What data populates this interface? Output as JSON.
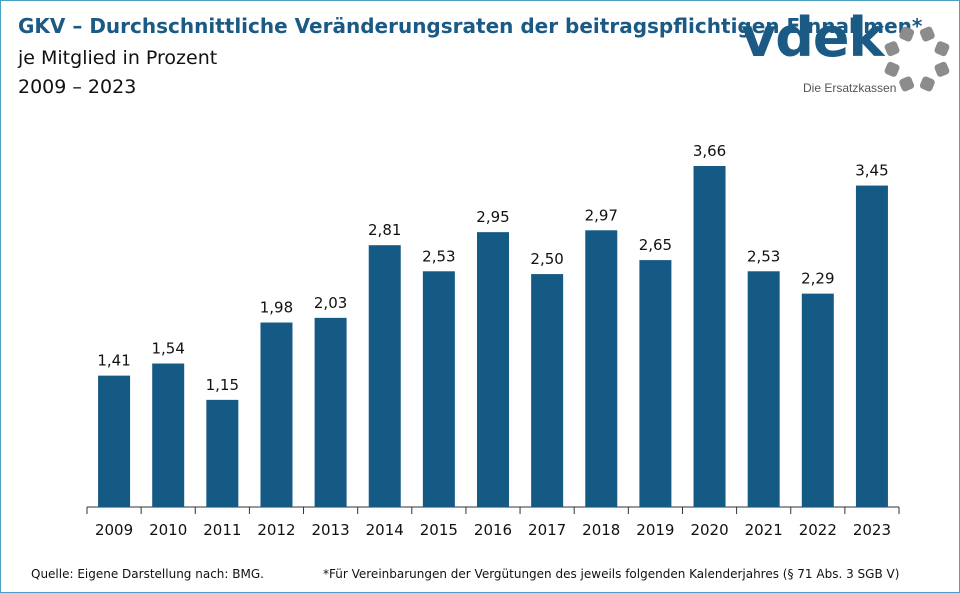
{
  "header": {
    "title": "GKV – Durchschnittliche Veränderungsraten der beitragspflichtigen Einnahmen*",
    "subtitle": "je Mitglied in Prozent",
    "range": "2009 – 2023"
  },
  "logo": {
    "word": "vdek",
    "tagline": "Die Ersatzkassen",
    "brand_color": "#1a5a84",
    "ring_color": "#8c8c8c"
  },
  "footer": {
    "source": "Quelle: Eigene Darstellung nach: BMG.",
    "footnote": "*Für Vereinbarungen der Vergütungen des jeweils folgenden Kalenderjahres (§ 71 Abs. 3 SGB V)"
  },
  "chart_data": {
    "type": "bar",
    "categories": [
      "2009",
      "2010",
      "2011",
      "2012",
      "2013",
      "2014",
      "2015",
      "2016",
      "2017",
      "2018",
      "2019",
      "2020",
      "2021",
      "2022",
      "2023"
    ],
    "values": [
      1.41,
      1.54,
      1.15,
      1.98,
      2.03,
      2.81,
      2.53,
      2.95,
      2.5,
      2.97,
      2.65,
      3.66,
      2.53,
      2.29,
      3.45
    ],
    "value_labels": [
      "1,41",
      "1,54",
      "1,15",
      "1,98",
      "2,03",
      "2,81",
      "2,53",
      "2,95",
      "2,50",
      "2,97",
      "2,65",
      "3,66",
      "2,53",
      "2,29",
      "3,45"
    ],
    "ylim": [
      0,
      3.66
    ],
    "grid": false,
    "bar_color": "#155a85",
    "data_labels": true
  }
}
